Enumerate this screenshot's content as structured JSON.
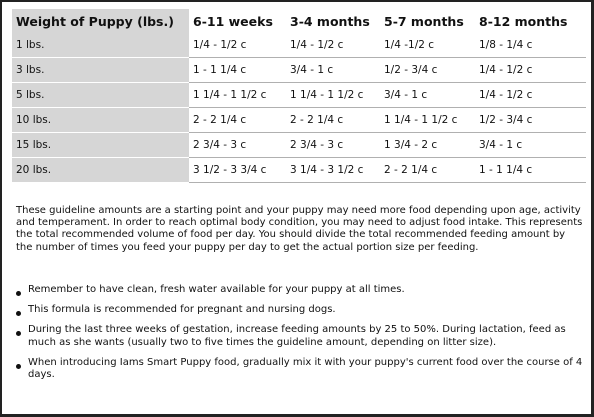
{
  "table": {
    "header": [
      "Weight of Puppy (lbs.)",
      "6-11 weeks",
      "3-4 months",
      "5-7 months",
      "8-12 months"
    ],
    "rows": [
      [
        "1 lbs.",
        "1/4 - 1/2 c",
        "1/4 - 1/2 c",
        "1/4 -1/2 c",
        "1/8 - 1/4 c"
      ],
      [
        "3 lbs.",
        "1 - 1 1/4 c",
        "3/4 - 1 c",
        "1/2 - 3/4 c",
        "1/4 - 1/2 c"
      ],
      [
        "5 lbs.",
        "1 1/4 - 1 1/2 c",
        "1 1/4 - 1 1/2 c",
        "3/4 - 1 c",
        "1/4 - 1/2 c"
      ],
      [
        "10 lbs.",
        "2 - 2 1/4 c",
        "2 - 2 1/4 c",
        "1 1/4 - 1 1/2 c",
        "1/2 - 3/4 c"
      ],
      [
        "15 lbs.",
        "2 3/4 - 3 c",
        "2 3/4 - 3 c",
        "1 3/4 - 2 c",
        "3/4 - 1 c"
      ],
      [
        "20 lbs.",
        "3 1/2 - 3 3/4 c",
        "3 1/4 - 3 1/2 c",
        "2 - 2 1/4 c",
        "1 - 1 1/4 c"
      ]
    ]
  },
  "paragraph": "These guideline amounts are a starting point and your puppy may need more food depending upon age, activity and temperament. In order to reach optimal body condition, you may need to adjust food intake. This represents the total recommended volume of food per day. You should divide the total recommended feeding amount by the number of times you feed your puppy per day to get the actual portion size per feeding.",
  "bullets": [
    "Remember to have clean, fresh water available for your puppy at all times.",
    "This formula is recommended for pregnant and nursing dogs.",
    "During the last three weeks of gestation, increase feeding amounts by 25 to 50%. During lactation, feed as much as she wants (usually two to five times the guideline amount, depending on litter size).",
    "When introducing Iams Smart Puppy food, gradually mix it with your puppy's current food over the course of 4 days."
  ]
}
